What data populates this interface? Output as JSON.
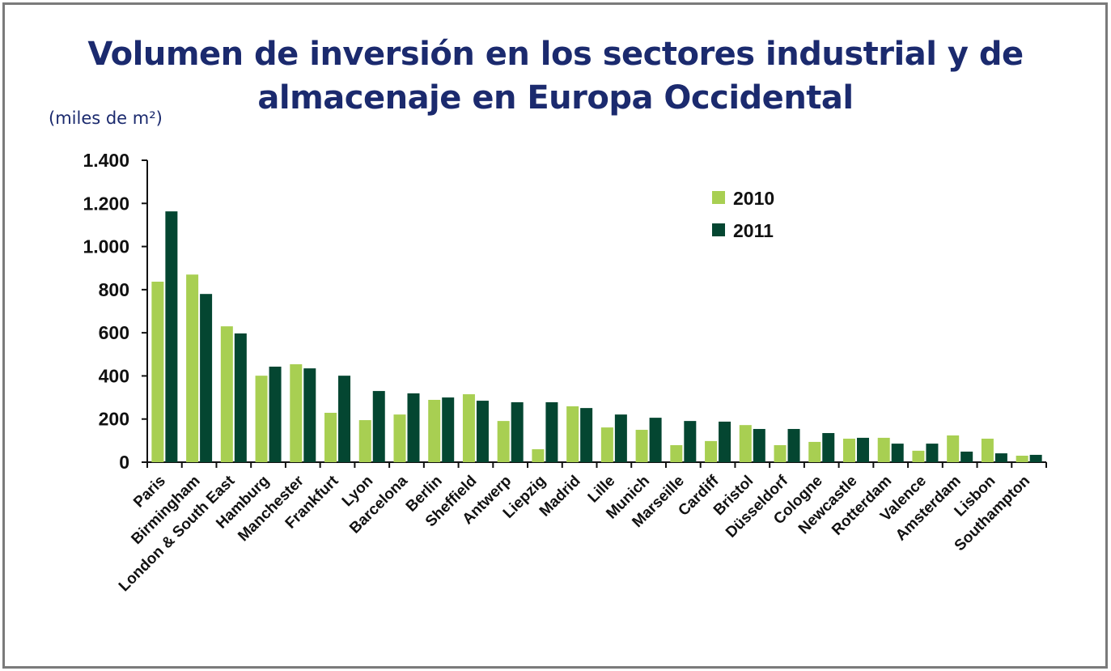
{
  "chart_data": {
    "type": "bar",
    "title": "Volumen de inversión en los sectores industrial y de almacenaje en Europa Occidental",
    "title_lines": [
      "Volumen de inversión en los sectores industrial y de",
      "almacenaje en Europa Occidental"
    ],
    "ylabel": "(miles de m²)",
    "xlabel": "",
    "ylim": [
      0,
      1400
    ],
    "yticks": [
      0,
      200,
      400,
      600,
      800,
      1000,
      1200,
      1400
    ],
    "ytick_labels": [
      "0",
      "200",
      "400",
      "600",
      "800",
      "1.000",
      "1.200",
      "1.400"
    ],
    "grid": false,
    "legend_position": "top-right",
    "categories": [
      "Paris",
      "Birmingham",
      "London & South East",
      "Hamburg",
      "Manchester",
      "Frankfurt",
      "Lyon",
      "Barcelona",
      "Berlin",
      "Sheffield",
      "Antwerp",
      "Liepzig",
      "Madrid",
      "Lille",
      "Munich",
      "Marseille",
      "Cardiff",
      "Bristol",
      "Düsseldorf",
      "Cologne",
      "Newcastle",
      "Rotterdam",
      "Valence",
      "Amsterdam",
      "Lisbon",
      "Southampton"
    ],
    "series": [
      {
        "name": "2010",
        "color": "#a8cf52",
        "values": [
          837,
          870,
          630,
          401,
          454,
          229,
          195,
          221,
          289,
          315,
          191,
          60,
          259,
          161,
          150,
          79,
          98,
          172,
          79,
          94,
          109,
          113,
          53,
          124,
          109,
          30
        ]
      },
      {
        "name": "2011",
        "color": "#044631",
        "values": [
          1163,
          780,
          597,
          443,
          435,
          401,
          330,
          319,
          300,
          285,
          278,
          278,
          251,
          221,
          206,
          191,
          188,
          154,
          154,
          135,
          113,
          86,
          86,
          49,
          41,
          34
        ]
      }
    ]
  }
}
